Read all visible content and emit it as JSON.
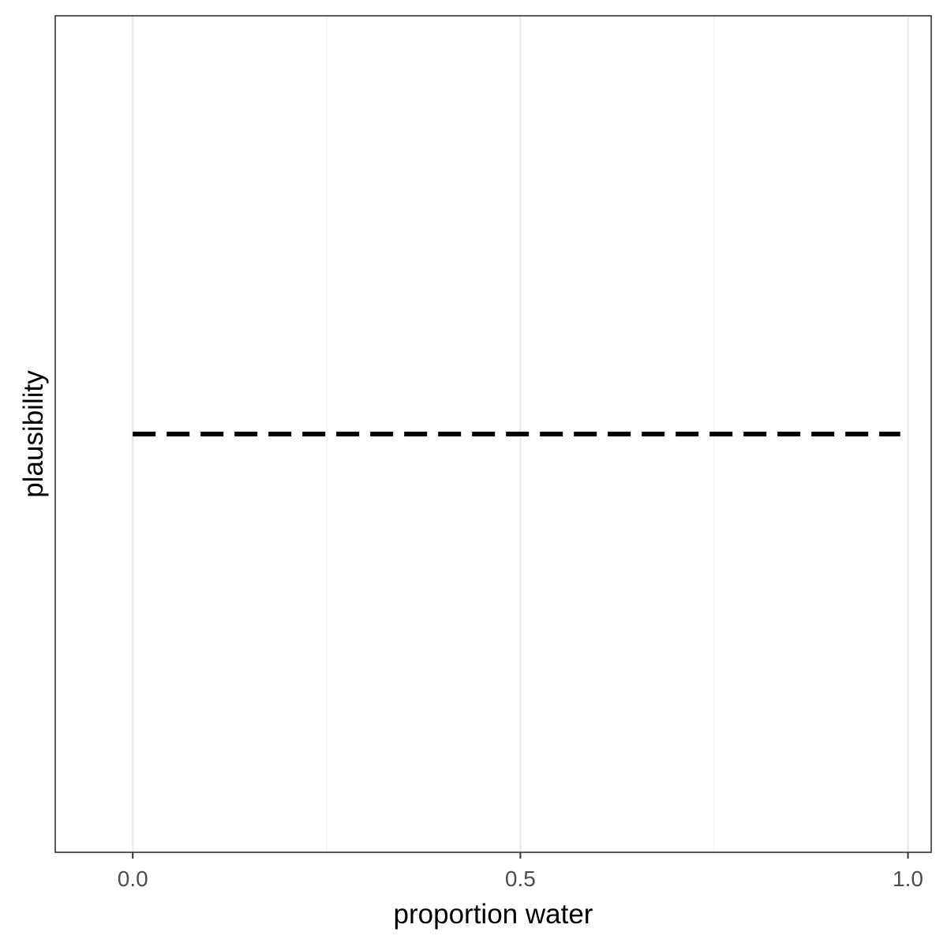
{
  "chart_data": {
    "type": "line",
    "title": "",
    "xlabel": "proportion water",
    "ylabel": "plausibility",
    "xlim": [
      -0.1,
      1.03
    ],
    "ylim": [
      0,
      1
    ],
    "x_ticks": [
      {
        "value": 0.0,
        "label": "0.0"
      },
      {
        "value": 0.5,
        "label": "0.5"
      },
      {
        "value": 1.0,
        "label": "1.0"
      }
    ],
    "x_minor_ticks": [
      0.25,
      0.75
    ],
    "y_ticks": [],
    "grid": true,
    "legend": "none",
    "series": [
      {
        "style": "dashed",
        "color": "#000000",
        "x": [
          0.0,
          0.99
        ],
        "y": [
          0.5,
          0.5
        ]
      }
    ]
  },
  "colors": {
    "background": "#ffffff",
    "panel_border": "#333333",
    "grid_major": "#ebebeb",
    "grid_minor": "#f2f2f2",
    "tick_label": "#4d4d4d",
    "axis_title": "#000000"
  }
}
